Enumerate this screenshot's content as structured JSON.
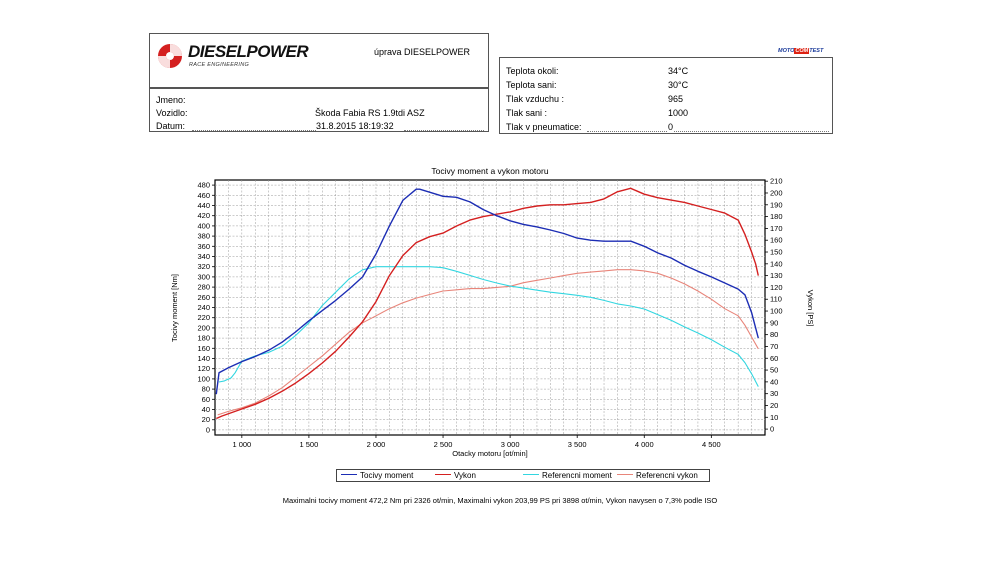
{
  "header": {
    "brand_name": "DIESELPOWER",
    "brand_sub": "RACE ENGINEERING",
    "brand_right": "úprava DIESELPOWER"
  },
  "vehicle": {
    "rows": [
      {
        "label": "Jmeno:",
        "value": ""
      },
      {
        "label": "Vozidlo:",
        "value": "Škoda Fabia RS 1.9tdi ASZ"
      },
      {
        "label": "Datum:",
        "value": "31.8.2015 18:19:32"
      }
    ]
  },
  "conditions": {
    "rows": [
      {
        "label": "Teplota okoli:",
        "value": "34°C"
      },
      {
        "label": "Teplota sani:",
        "value": "30°C"
      },
      {
        "label": "Tlak vzduchu :",
        "value": "965"
      },
      {
        "label": "Tlak sani :",
        "value": "1000"
      },
      {
        "label": "Tlak v pneumatice:",
        "value": "0"
      }
    ]
  },
  "badge": {
    "left": "MOTO",
    "mid": "COM",
    "right": "TEST"
  },
  "colors": {
    "torque": "#1c2db4",
    "power": "#d42020",
    "ref_torque": "#33d6e0",
    "ref_power": "#e8857a"
  },
  "chart_data": {
    "type": "line",
    "title": "Tocivy moment a vykon motoru",
    "xlabel": "Otacky motoru [ot/min]",
    "ylabel_left": "Tocivy moment [Nm]",
    "ylabel_right": "Vykon [PS]",
    "xlim": [
      800,
      4900
    ],
    "ylim_left": [
      -10,
      490
    ],
    "ylim_right": [
      -5,
      211
    ],
    "x_ticks": [
      1000,
      1500,
      2000,
      2500,
      3000,
      3500,
      4000,
      4500
    ],
    "x_tick_labels": [
      "1 000",
      "1 500",
      "2 000",
      "2 500",
      "3 000",
      "3 500",
      "4 000",
      "4 500"
    ],
    "y_left_ticks": [
      0,
      20,
      40,
      60,
      80,
      100,
      120,
      140,
      160,
      180,
      200,
      220,
      240,
      260,
      280,
      300,
      320,
      340,
      360,
      380,
      400,
      420,
      440,
      460,
      480
    ],
    "y_right_ticks": [
      0,
      10,
      20,
      30,
      40,
      50,
      60,
      70,
      80,
      90,
      100,
      110,
      120,
      130,
      140,
      150,
      160,
      170,
      180,
      190,
      200,
      210
    ],
    "grid": true,
    "series": [
      {
        "name": "Tocivy moment",
        "axis": "left",
        "color": "#1c2db4",
        "x": [
          810,
          830,
          900,
          1000,
          1100,
          1200,
          1300,
          1400,
          1500,
          1600,
          1700,
          1800,
          1900,
          2000,
          2100,
          2200,
          2300,
          2326,
          2400,
          2500,
          2600,
          2700,
          2800,
          2900,
          3000,
          3100,
          3200,
          3300,
          3400,
          3500,
          3600,
          3700,
          3800,
          3900,
          4000,
          4100,
          4200,
          4300,
          4400,
          4500,
          4600,
          4700,
          4750,
          4800,
          4850
        ],
        "y": [
          70,
          112,
          122,
          134,
          144,
          156,
          172,
          192,
          214,
          234,
          254,
          276,
          300,
          345,
          400,
          450,
          472,
          472,
          466,
          458,
          456,
          447,
          432,
          420,
          410,
          403,
          398,
          392,
          385,
          376,
          372,
          370,
          370,
          370,
          360,
          347,
          337,
          323,
          311,
          300,
          288,
          276,
          265,
          230,
          180
        ]
      },
      {
        "name": "Vykon",
        "axis": "left_ps",
        "color": "#d42020",
        "x": [
          810,
          850,
          1000,
          1100,
          1200,
          1300,
          1400,
          1500,
          1600,
          1700,
          1800,
          1900,
          2000,
          2100,
          2200,
          2300,
          2400,
          2500,
          2600,
          2700,
          2800,
          2900,
          3000,
          3100,
          3200,
          3300,
          3400,
          3500,
          3600,
          3700,
          3800,
          3898,
          4000,
          4100,
          4200,
          4300,
          4400,
          4500,
          4600,
          4700,
          4750,
          4800,
          4830,
          4850
        ],
        "y": [
          9,
          11,
          17,
          21,
          26,
          32,
          39,
          47,
          56,
          66,
          78,
          91,
          108,
          130,
          147,
          158,
          163,
          166,
          172,
          177,
          180,
          182,
          184,
          187,
          189,
          190,
          190,
          191,
          192,
          195,
          201,
          204,
          199,
          196,
          194,
          192,
          189,
          186,
          183,
          177,
          165,
          150,
          140,
          130
        ]
      },
      {
        "name": "Referencni moment",
        "axis": "left",
        "color": "#33d6e0",
        "x": [
          830,
          870,
          920,
          950,
          1000,
          1100,
          1200,
          1300,
          1400,
          1500,
          1600,
          1700,
          1800,
          1900,
          2000,
          2100,
          2200,
          2300,
          2400,
          2500,
          2600,
          2700,
          2800,
          2900,
          3000,
          3100,
          3200,
          3300,
          3400,
          3500,
          3600,
          3700,
          3800,
          3900,
          4000,
          4100,
          4200,
          4300,
          4400,
          4500,
          4600,
          4700,
          4750,
          4800,
          4850
        ],
        "y": [
          94,
          96,
          102,
          112,
          135,
          145,
          152,
          164,
          185,
          210,
          244,
          270,
          296,
          314,
          320,
          320,
          320,
          320,
          320,
          318,
          311,
          303,
          295,
          288,
          282,
          278,
          274,
          270,
          267,
          264,
          260,
          254,
          247,
          243,
          237,
          226,
          215,
          202,
          190,
          177,
          162,
          148,
          132,
          110,
          85
        ]
      },
      {
        "name": "Referencni vykon",
        "axis": "left_ps",
        "color": "#e8857a",
        "x": [
          820,
          900,
          1000,
          1100,
          1200,
          1300,
          1400,
          1500,
          1600,
          1700,
          1800,
          1900,
          2000,
          2100,
          2200,
          2300,
          2400,
          2500,
          2600,
          2700,
          2800,
          2900,
          3000,
          3100,
          3200,
          3300,
          3400,
          3500,
          3600,
          3700,
          3800,
          3900,
          4000,
          4100,
          4200,
          4300,
          4400,
          4500,
          4600,
          4700,
          4750,
          4800,
          4850
        ],
        "y": [
          12,
          15,
          18,
          22,
          28,
          35,
          44,
          53,
          62,
          72,
          82,
          90,
          96,
          102,
          107,
          111,
          114,
          117,
          118,
          119,
          119,
          120,
          121,
          124,
          126,
          128,
          130,
          132,
          133,
          134,
          135,
          135,
          134,
          132,
          128,
          123,
          117,
          110,
          102,
          96,
          88,
          78,
          68
        ]
      }
    ],
    "legend_position": "bottom",
    "summary": "Maximalni tocivy moment 472,2 Nm pri 2326 ot/min,  Maximalni vykon 203,99 PS pri 3898 ot/min,  Vykon navysen o 7,3% podle ISO"
  },
  "legend": [
    {
      "label": "Tocivy moment",
      "color": "#1c2db4"
    },
    {
      "label": "Vykon",
      "color": "#d42020"
    },
    {
      "label": "Referencni moment",
      "color": "#33d6e0"
    },
    {
      "label": "Referencni vykon",
      "color": "#e8857a"
    }
  ]
}
